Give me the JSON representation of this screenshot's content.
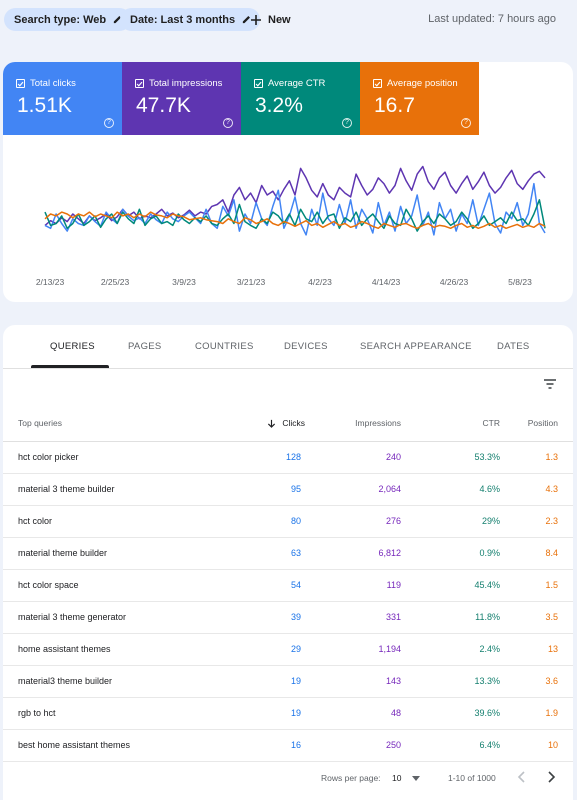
{
  "topbar": {
    "chip_search": "Search type: Web",
    "chip_date": "Date: Last 3 months",
    "new_label": "New",
    "last_updated": "Last updated: 7 hours ago"
  },
  "metrics": [
    {
      "label": "Total clicks",
      "value": "1.51K",
      "color": "#4285f4"
    },
    {
      "label": "Total impressions",
      "value": "47.7K",
      "color": "#5e35b1"
    },
    {
      "label": "Average CTR",
      "value": "3.2%",
      "color": "#00897b"
    },
    {
      "label": "Average position",
      "value": "16.7",
      "color": "#e8710a"
    }
  ],
  "chart_data": {
    "type": "line",
    "x_ticks": [
      "2/13/23",
      "2/25/23",
      "3/9/23",
      "3/21/23",
      "4/2/23",
      "4/14/23",
      "4/26/23",
      "5/8/23"
    ],
    "series": [
      {
        "name": "Total impressions",
        "color": "#5e35b1",
        "values": [
          0.28,
          0.33,
          0.3,
          0.36,
          0.32,
          0.4,
          0.35,
          0.3,
          0.38,
          0.33,
          0.36,
          0.4,
          0.33,
          0.37,
          0.45,
          0.38,
          0.42,
          0.35,
          0.38,
          0.36,
          0.4,
          0.45,
          0.38,
          0.41,
          0.36,
          0.39,
          0.44,
          0.38,
          0.42,
          0.4,
          0.48,
          0.5,
          0.55,
          0.42,
          0.6,
          0.68,
          0.55,
          0.62,
          0.52,
          0.7,
          0.6,
          0.64,
          0.55,
          0.66,
          0.75,
          0.6,
          0.88,
          0.78,
          0.65,
          0.58,
          0.72,
          0.6,
          0.55,
          0.68,
          0.62,
          0.58,
          0.82,
          0.7,
          0.6,
          0.66,
          0.78,
          0.72,
          0.62,
          0.7,
          0.88,
          0.75,
          0.65,
          0.82,
          0.9,
          0.74,
          0.66,
          0.78,
          0.84,
          0.7,
          0.62,
          0.72,
          0.8,
          0.66,
          0.74,
          0.84,
          0.7,
          0.62,
          0.68,
          0.78,
          0.86,
          0.72,
          0.66,
          0.75,
          0.82,
          0.85,
          0.78
        ]
      },
      {
        "name": "Total clicks",
        "color": "#4285f4",
        "values": [
          0.28,
          0.25,
          0.4,
          0.3,
          0.22,
          0.35,
          0.3,
          0.28,
          0.38,
          0.32,
          0.27,
          0.42,
          0.35,
          0.3,
          0.45,
          0.38,
          0.33,
          0.36,
          0.3,
          0.4,
          0.34,
          0.3,
          0.42,
          0.35,
          0.32,
          0.38,
          0.42,
          0.36,
          0.3,
          0.45,
          0.3,
          0.25,
          0.48,
          0.38,
          0.55,
          0.22,
          0.4,
          0.3,
          0.52,
          0.35,
          0.28,
          0.48,
          0.65,
          0.25,
          0.38,
          0.58,
          0.3,
          0.18,
          0.45,
          0.28,
          0.62,
          0.35,
          0.28,
          0.5,
          0.3,
          0.55,
          0.25,
          0.45,
          0.35,
          0.2,
          0.52,
          0.28,
          0.42,
          0.22,
          0.48,
          0.3,
          0.38,
          0.6,
          0.28,
          0.42,
          0.18,
          0.52,
          0.35,
          0.45,
          0.22,
          0.4,
          0.3,
          0.55,
          0.28,
          0.45,
          0.62,
          0.3,
          0.2,
          0.42,
          0.35,
          0.52,
          0.28,
          0.4,
          0.72,
          0.3,
          0.2
        ]
      },
      {
        "name": "Average CTR",
        "color": "#00897b",
        "values": [
          0.42,
          0.28,
          0.3,
          0.38,
          0.25,
          0.3,
          0.4,
          0.28,
          0.32,
          0.38,
          0.26,
          0.35,
          0.4,
          0.3,
          0.42,
          0.35,
          0.3,
          0.45,
          0.28,
          0.35,
          0.38,
          0.3,
          0.32,
          0.28,
          0.4,
          0.34,
          0.3,
          0.36,
          0.32,
          0.38,
          0.3,
          0.28,
          0.35,
          0.4,
          0.3,
          0.5,
          0.32,
          0.28,
          0.25,
          0.35,
          0.3,
          0.42,
          0.38,
          0.3,
          0.4,
          0.28,
          0.45,
          0.35,
          0.32,
          0.42,
          0.3,
          0.38,
          0.4,
          0.25,
          0.36,
          0.32,
          0.42,
          0.28,
          0.35,
          0.4,
          0.32,
          0.25,
          0.38,
          0.3,
          0.28,
          0.45,
          0.35,
          0.22,
          0.32,
          0.38,
          0.3,
          0.4,
          0.35,
          0.28,
          0.32,
          0.42,
          0.35,
          0.25,
          0.3,
          0.38,
          0.28,
          0.32,
          0.36,
          0.3,
          0.42,
          0.33,
          0.35,
          0.28,
          0.4,
          0.55,
          0.25
        ]
      },
      {
        "name": "Average position",
        "color": "#e8710a",
        "values": [
          0.35,
          0.4,
          0.38,
          0.42,
          0.4,
          0.36,
          0.4,
          0.38,
          0.42,
          0.37,
          0.4,
          0.38,
          0.36,
          0.42,
          0.38,
          0.4,
          0.36,
          0.4,
          0.37,
          0.42,
          0.39,
          0.38,
          0.36,
          0.4,
          0.38,
          0.37,
          0.34,
          0.35,
          0.36,
          0.34,
          0.33,
          0.32,
          0.3,
          0.35,
          0.32,
          0.3,
          0.36,
          0.34,
          0.3,
          0.32,
          0.35,
          0.3,
          0.28,
          0.32,
          0.3,
          0.27,
          0.3,
          0.33,
          0.28,
          0.3,
          0.26,
          0.29,
          0.32,
          0.28,
          0.3,
          0.26,
          0.28,
          0.32,
          0.3,
          0.27,
          0.25,
          0.3,
          0.28,
          0.26,
          0.29,
          0.3,
          0.27,
          0.25,
          0.28,
          0.3,
          0.26,
          0.28,
          0.27,
          0.25,
          0.28,
          0.3,
          0.26,
          0.28,
          0.25,
          0.27,
          0.3,
          0.26,
          0.28,
          0.25,
          0.27,
          0.29,
          0.26,
          0.28,
          0.26,
          0.3,
          0.27
        ]
      }
    ]
  },
  "tabs": [
    "QUERIES",
    "PAGES",
    "COUNTRIES",
    "DEVICES",
    "SEARCH APPEARANCE",
    "DATES"
  ],
  "table": {
    "headers": {
      "query": "Top queries",
      "clicks": "Clicks",
      "impressions": "Impressions",
      "ctr": "CTR",
      "position": "Position"
    },
    "rows": [
      {
        "query": "hct color picker",
        "clicks": "128",
        "impressions": "240",
        "ctr": "53.3%",
        "position": "1.3"
      },
      {
        "query": "material 3 theme builder",
        "clicks": "95",
        "impressions": "2,064",
        "ctr": "4.6%",
        "position": "4.3"
      },
      {
        "query": "hct color",
        "clicks": "80",
        "impressions": "276",
        "ctr": "29%",
        "position": "2.3"
      },
      {
        "query": "material theme builder",
        "clicks": "63",
        "impressions": "6,812",
        "ctr": "0.9%",
        "position": "8.4"
      },
      {
        "query": "hct color space",
        "clicks": "54",
        "impressions": "119",
        "ctr": "45.4%",
        "position": "1.5"
      },
      {
        "query": "material 3 theme generator",
        "clicks": "39",
        "impressions": "331",
        "ctr": "11.8%",
        "position": "3.5"
      },
      {
        "query": "home assistant themes",
        "clicks": "29",
        "impressions": "1,194",
        "ctr": "2.4%",
        "position": "13"
      },
      {
        "query": "material3 theme builder",
        "clicks": "19",
        "impressions": "143",
        "ctr": "13.3%",
        "position": "3.6"
      },
      {
        "query": "rgb to hct",
        "clicks": "19",
        "impressions": "48",
        "ctr": "39.6%",
        "position": "1.9"
      },
      {
        "query": "best home assistant themes",
        "clicks": "16",
        "impressions": "250",
        "ctr": "6.4%",
        "position": "10"
      }
    ]
  },
  "pager": {
    "rows_per_page_label": "Rows per page:",
    "rows_per_page_value": "10",
    "range": "1-10 of 1000"
  }
}
